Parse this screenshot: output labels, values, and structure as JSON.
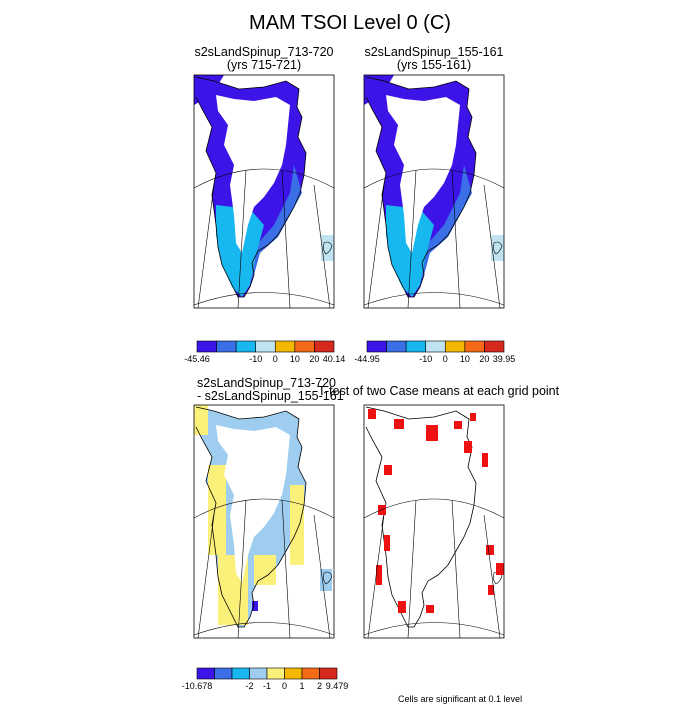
{
  "title": "MAM TSOI Level 0 (C)",
  "panels": [
    {
      "id": "p1",
      "title_lines": [
        "s2sLandSpinup_713-720",
        "(yrs 715-721)"
      ],
      "colorbar": {
        "min_label": "-45.46",
        "max_label": "40.14",
        "ticks": [
          "-10",
          "0",
          "10",
          "20"
        ],
        "colors": [
          "#3d14e8",
          "#3a6fe8",
          "#17b7f0",
          "#bfe3f0",
          "#f5b800",
          "#f56a16",
          "#d7281e"
        ]
      }
    },
    {
      "id": "p2",
      "title_lines": [
        "s2sLandSpinup_155-161",
        "(yrs 155-161)"
      ],
      "colorbar": {
        "min_label": "-44.95",
        "max_label": "39.95",
        "ticks": [
          "-10",
          "0",
          "10",
          "20"
        ],
        "colors": [
          "#3d14e8",
          "#3a6fe8",
          "#17b7f0",
          "#bfe3f0",
          "#f5b800",
          "#f56a16",
          "#d7281e"
        ]
      }
    },
    {
      "id": "p3",
      "title_lines": [
        "s2sLandSpinup_713-720",
        "- s2sLandSpinup_155-161"
      ],
      "colorbar": {
        "min_label": "-10.678",
        "max_label": "9.479",
        "ticks": [
          "-2",
          "-1",
          "0",
          "1",
          "2"
        ],
        "colors": [
          "#3d14e8",
          "#3a6fe8",
          "#17b7f0",
          "#9fcdef",
          "#fbf07a",
          "#f5b800",
          "#f56a16",
          "#d7281e"
        ]
      }
    },
    {
      "id": "p4",
      "title_lines": [
        "T-test of two Case means at each grid point"
      ],
      "significance_color": "#ee1111",
      "note": "Cells are significant at 0.1 level"
    }
  ],
  "colors": {
    "deep_blue": "#3d14e8",
    "mid_blue": "#3a6fe8",
    "sky": "#17b7f0",
    "pale": "#bfe3f0",
    "diff_pale": "#9fcdef",
    "diff_yellow": "#fbf07a",
    "sig_red": "#ee1111"
  }
}
